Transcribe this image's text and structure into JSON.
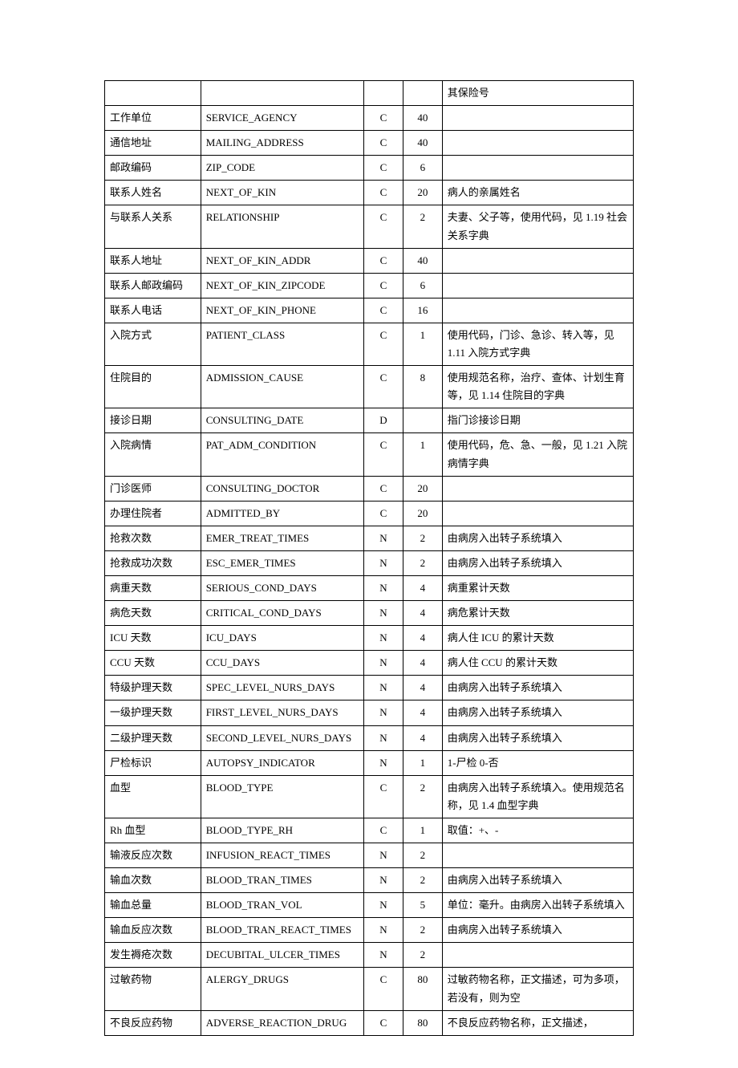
{
  "table": {
    "columns": {
      "col1_width": 103,
      "col2_width": 175,
      "col3_width": 42,
      "col4_width": 42,
      "col5_width": 205
    },
    "border_color": "#000000",
    "background_color": "#ffffff",
    "font_family": "SimSun",
    "font_size": 13,
    "rows": [
      {
        "c1": "",
        "c2": "",
        "c3": "",
        "c4": "",
        "c5": "其保险号"
      },
      {
        "c1": "工作单位",
        "c2": "SERVICE_AGENCY",
        "c3": "C",
        "c4": "40",
        "c5": ""
      },
      {
        "c1": "通信地址",
        "c2": "MAILING_ADDRESS",
        "c3": "C",
        "c4": "40",
        "c5": ""
      },
      {
        "c1": "邮政编码",
        "c2": "ZIP_CODE",
        "c3": "C",
        "c4": "6",
        "c5": ""
      },
      {
        "c1": "联系人姓名",
        "c2": "NEXT_OF_KIN",
        "c3": "C",
        "c4": "20",
        "c5": "病人的亲属姓名"
      },
      {
        "c1": "与联系人关系",
        "c2": "RELATIONSHIP",
        "c3": "C",
        "c4": "2",
        "c5": "夫妻、父子等，使用代码，见 1.19 社会关系字典"
      },
      {
        "c1": "联系人地址",
        "c2": "NEXT_OF_KIN_ADDR",
        "c3": "C",
        "c4": "40",
        "c5": ""
      },
      {
        "c1": "联系人邮政编码",
        "c2": "NEXT_OF_KIN_ZIPCODE",
        "c3": "C",
        "c4": "6",
        "c5": ""
      },
      {
        "c1": "联系人电话",
        "c2": "NEXT_OF_KIN_PHONE",
        "c3": "C",
        "c4": "16",
        "c5": ""
      },
      {
        "c1": "入院方式",
        "c2": "PATIENT_CLASS",
        "c3": "C",
        "c4": "1",
        "c5": "使用代码，门诊、急诊、转入等，见 1.11 入院方式字典"
      },
      {
        "c1": "住院目的",
        "c2": "ADMISSION_CAUSE",
        "c3": "C",
        "c4": "8",
        "c5": "使用规范名称，治疗、查体、计划生育等，见 1.14 住院目的字典"
      },
      {
        "c1": "接诊日期",
        "c2": "CONSULTING_DATE",
        "c3": "D",
        "c4": "",
        "c5": "指门诊接诊日期"
      },
      {
        "c1": "入院病情",
        "c2": "PAT_ADM_CONDITION",
        "c3": "C",
        "c4": "1",
        "c5": "使用代码，危、急、一般，见 1.21 入院病情字典"
      },
      {
        "c1": "门诊医师",
        "c2": "CONSULTING_DOCTOR",
        "c3": "C",
        "c4": "20",
        "c5": ""
      },
      {
        "c1": "办理住院者",
        "c2": "ADMITTED_BY",
        "c3": "C",
        "c4": "20",
        "c5": ""
      },
      {
        "c1": "抢救次数",
        "c2": "EMER_TREAT_TIMES",
        "c3": "N",
        "c4": "2",
        "c5": "由病房入出转子系统填入"
      },
      {
        "c1": "抢救成功次数",
        "c2": "ESC_EMER_TIMES",
        "c3": "N",
        "c4": "2",
        "c5": "由病房入出转子系统填入"
      },
      {
        "c1": "病重天数",
        "c2": "SERIOUS_COND_DAYS",
        "c3": "N",
        "c4": "4",
        "c5": "病重累计天数"
      },
      {
        "c1": "病危天数",
        "c2": "CRITICAL_COND_DAYS",
        "c3": "N",
        "c4": "4",
        "c5": "病危累计天数"
      },
      {
        "c1": "ICU 天数",
        "c2": "ICU_DAYS",
        "c3": "N",
        "c4": "4",
        "c5": "病人住 ICU 的累计天数"
      },
      {
        "c1": "CCU 天数",
        "c2": "CCU_DAYS",
        "c3": "N",
        "c4": "4",
        "c5": "病人住 CCU 的累计天数"
      },
      {
        "c1": "特级护理天数",
        "c2": "SPEC_LEVEL_NURS_DAYS",
        "c3": "N",
        "c4": "4",
        "c5": "由病房入出转子系统填入"
      },
      {
        "c1": "一级护理天数",
        "c2": "FIRST_LEVEL_NURS_DAYS",
        "c3": "N",
        "c4": "4",
        "c5": "由病房入出转子系统填入"
      },
      {
        "c1": "二级护理天数",
        "c2": "SECOND_LEVEL_NURS_DAYS",
        "c3": "N",
        "c4": "4",
        "c5": "由病房入出转子系统填入"
      },
      {
        "c1": "尸检标识",
        "c2": "AUTOPSY_INDICATOR",
        "c3": "N",
        "c4": "1",
        "c5": "1-尸检  0-否"
      },
      {
        "c1": "血型",
        "c2": "BLOOD_TYPE",
        "c3": "C",
        "c4": "2",
        "c5": "由病房入出转子系统填入。使用规范名称，见 1.4 血型字典"
      },
      {
        "c1": "Rh 血型",
        "c2": "BLOOD_TYPE_RH",
        "c3": "C",
        "c4": "1",
        "c5": "取值：+、-"
      },
      {
        "c1": "输液反应次数",
        "c2": "INFUSION_REACT_TIMES",
        "c3": "N",
        "c4": "2",
        "c5": ""
      },
      {
        "c1": "输血次数",
        "c2": "BLOOD_TRAN_TIMES",
        "c3": "N",
        "c4": "2",
        "c5": "由病房入出转子系统填入"
      },
      {
        "c1": "输血总量",
        "c2": "BLOOD_TRAN_VOL",
        "c3": "N",
        "c4": "5",
        "c5": "单位：毫升。由病房入出转子系统填入"
      },
      {
        "c1": "输血反应次数",
        "c2": "BLOOD_TRAN_REACT_TIMES",
        "c3": "N",
        "c4": "2",
        "c5": "由病房入出转子系统填入"
      },
      {
        "c1": "发生褥疮次数",
        "c2": "DECUBITAL_ULCER_TIMES",
        "c3": "N",
        "c4": "2",
        "c5": ""
      },
      {
        "c1": "过敏药物",
        "c2": "ALERGY_DRUGS",
        "c3": "C",
        "c4": "80",
        "c5": "过敏药物名称，正文描述，可为多项，若没有，则为空"
      },
      {
        "c1": "不良反应药物",
        "c2": "ADVERSE_REACTION_DRUG",
        "c3": "C",
        "c4": "80",
        "c5": "不良反应药物名称，正文描述，"
      }
    ]
  }
}
